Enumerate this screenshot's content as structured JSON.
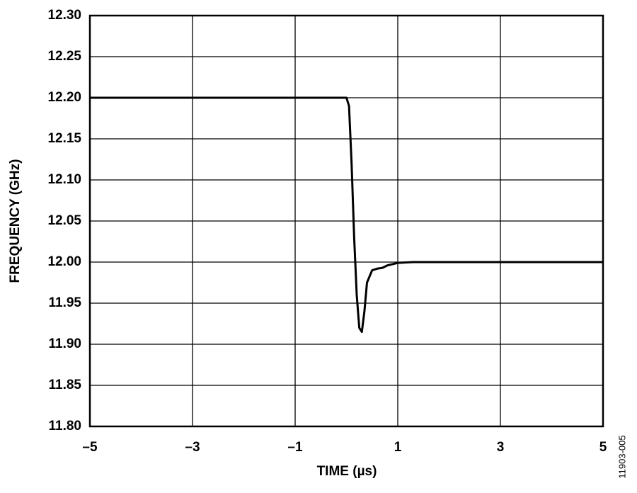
{
  "chart_data": {
    "type": "line",
    "xlabel": "TIME (µs)",
    "ylabel": "FREQUENCY (GHz)",
    "annotation": "11903-005",
    "x": [
      -5,
      0,
      0.05,
      0.1,
      0.15,
      0.2,
      0.25,
      0.3,
      0.35,
      0.4,
      0.5,
      0.6,
      0.7,
      0.8,
      1.0,
      1.3,
      5
    ],
    "values": [
      12.2,
      12.2,
      12.19,
      12.12,
      12.03,
      11.96,
      11.92,
      11.915,
      11.94,
      11.975,
      11.99,
      11.992,
      11.993,
      11.996,
      11.999,
      12.0,
      12.0
    ],
    "color": "#000000",
    "xlim": [
      -5,
      5
    ],
    "xticks": [
      {
        "value": -5,
        "label": "–5"
      },
      {
        "value": -3,
        "label": "–3"
      },
      {
        "value": -1,
        "label": "–1"
      },
      1,
      3,
      5
    ],
    "ylim": [
      11.8,
      12.3
    ],
    "yticks": [
      {
        "value": 11.8,
        "label": "11.80"
      },
      {
        "value": 11.85,
        "label": "11.85"
      },
      {
        "value": 11.9,
        "label": "11.90"
      },
      {
        "value": 11.95,
        "label": "11.95"
      },
      {
        "value": 12.0,
        "label": "12.00"
      },
      {
        "value": 12.05,
        "label": "12.05"
      },
      {
        "value": 12.1,
        "label": "12.10"
      },
      {
        "value": 12.15,
        "label": "12.15"
      },
      {
        "value": 12.2,
        "label": "12.20"
      },
      {
        "value": 12.25,
        "label": "12.25"
      },
      {
        "value": 12.3,
        "label": "12.30"
      }
    ],
    "grid": true
  }
}
